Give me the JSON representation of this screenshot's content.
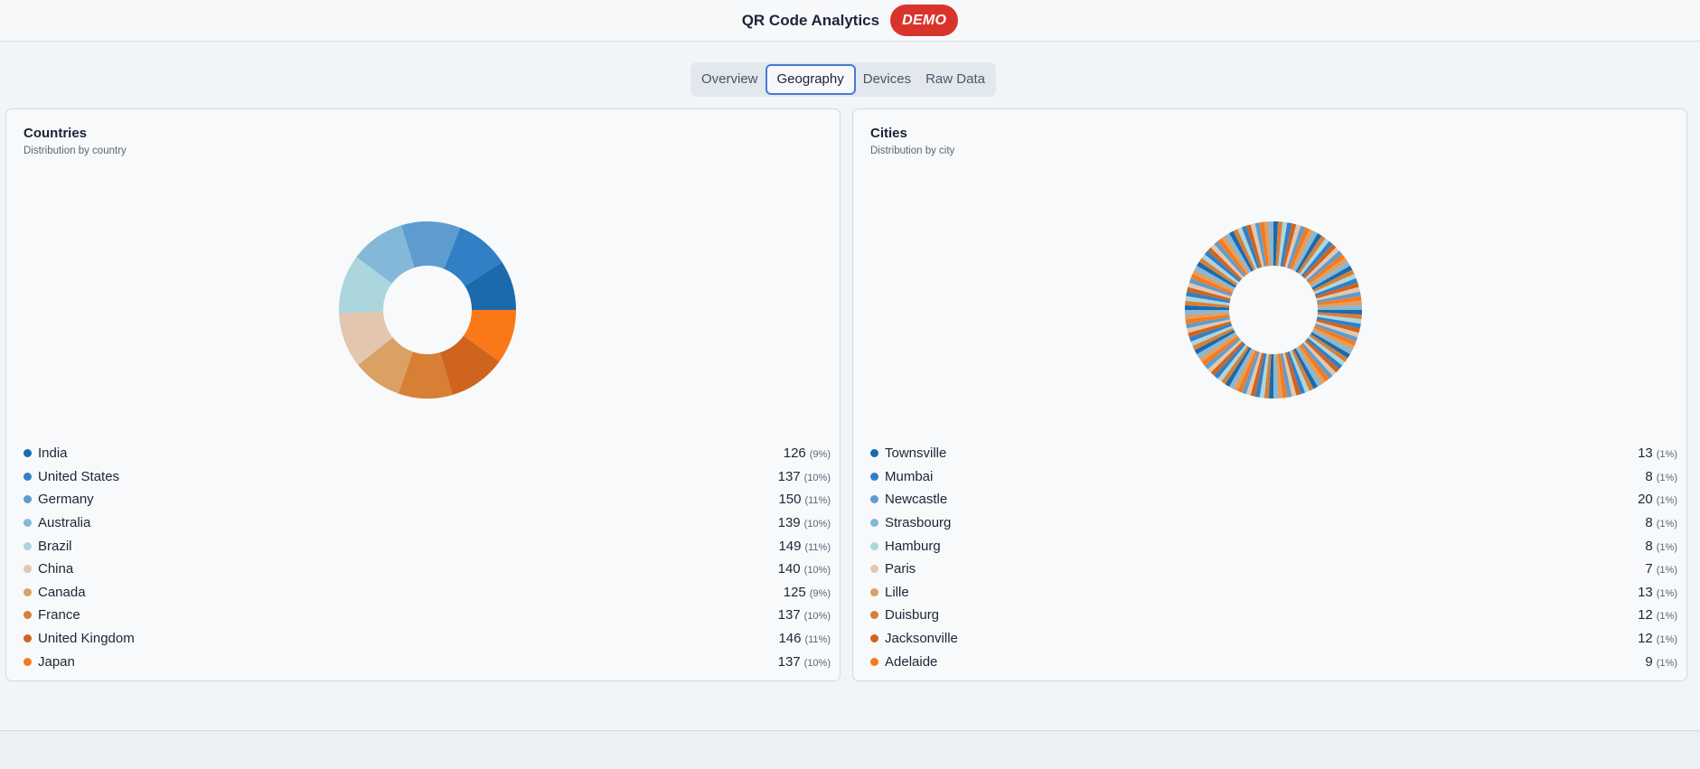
{
  "header": {
    "title": "QR Code Analytics",
    "badge": "DEMO"
  },
  "tabs": [
    {
      "label": "Overview",
      "active": false
    },
    {
      "label": "Geography",
      "active": true
    },
    {
      "label": "Devices",
      "active": false
    },
    {
      "label": "Raw Data",
      "active": false
    }
  ],
  "countries": {
    "title": "Countries",
    "subtitle": "Distribution by country",
    "items": [
      {
        "name": "India",
        "count": "126",
        "pct": "(9%)",
        "value": 126,
        "color": "#1b6aac"
      },
      {
        "name": "United States",
        "count": "137",
        "pct": "(10%)",
        "value": 137,
        "color": "#337fc6"
      },
      {
        "name": "Germany",
        "count": "150",
        "pct": "(11%)",
        "value": 150,
        "color": "#5e9ccf"
      },
      {
        "name": "Australia",
        "count": "139",
        "pct": "(10%)",
        "value": 139,
        "color": "#84b8d8"
      },
      {
        "name": "Brazil",
        "count": "149",
        "pct": "(11%)",
        "value": 149,
        "color": "#acd6de"
      },
      {
        "name": "China",
        "count": "140",
        "pct": "(10%)",
        "value": 140,
        "color": "#e2c6ad"
      },
      {
        "name": "Canada",
        "count": "125",
        "pct": "(9%)",
        "value": 125,
        "color": "#dba064"
      },
      {
        "name": "France",
        "count": "137",
        "pct": "(10%)",
        "value": 137,
        "color": "#d77f35"
      },
      {
        "name": "United Kingdom",
        "count": "146",
        "pct": "(11%)",
        "value": 146,
        "color": "#cf641f"
      },
      {
        "name": "Japan",
        "count": "137",
        "pct": "(10%)",
        "value": 137,
        "color": "#fb7818"
      }
    ]
  },
  "cities": {
    "title": "Cities",
    "subtitle": "Distribution by city",
    "items": [
      {
        "name": "Townsville",
        "count": "13",
        "pct": "(1%)",
        "color": "#1b6aac"
      },
      {
        "name": "Mumbai",
        "count": "8",
        "pct": "(1%)",
        "color": "#337fc6"
      },
      {
        "name": "Newcastle",
        "count": "20",
        "pct": "(1%)",
        "color": "#5e9ccf"
      },
      {
        "name": "Strasbourg",
        "count": "8",
        "pct": "(1%)",
        "color": "#84b8d8"
      },
      {
        "name": "Hamburg",
        "count": "8",
        "pct": "(1%)",
        "color": "#acd6de"
      },
      {
        "name": "Paris",
        "count": "7",
        "pct": "(1%)",
        "color": "#e2c6ad"
      },
      {
        "name": "Lille",
        "count": "13",
        "pct": "(1%)",
        "color": "#dba064"
      },
      {
        "name": "Duisburg",
        "count": "12",
        "pct": "(1%)",
        "color": "#d77f35"
      },
      {
        "name": "Jacksonville",
        "count": "12",
        "pct": "(1%)",
        "color": "#cf641f"
      },
      {
        "name": "Adelaide",
        "count": "9",
        "pct": "(1%)",
        "color": "#fb7818"
      }
    ]
  }
}
